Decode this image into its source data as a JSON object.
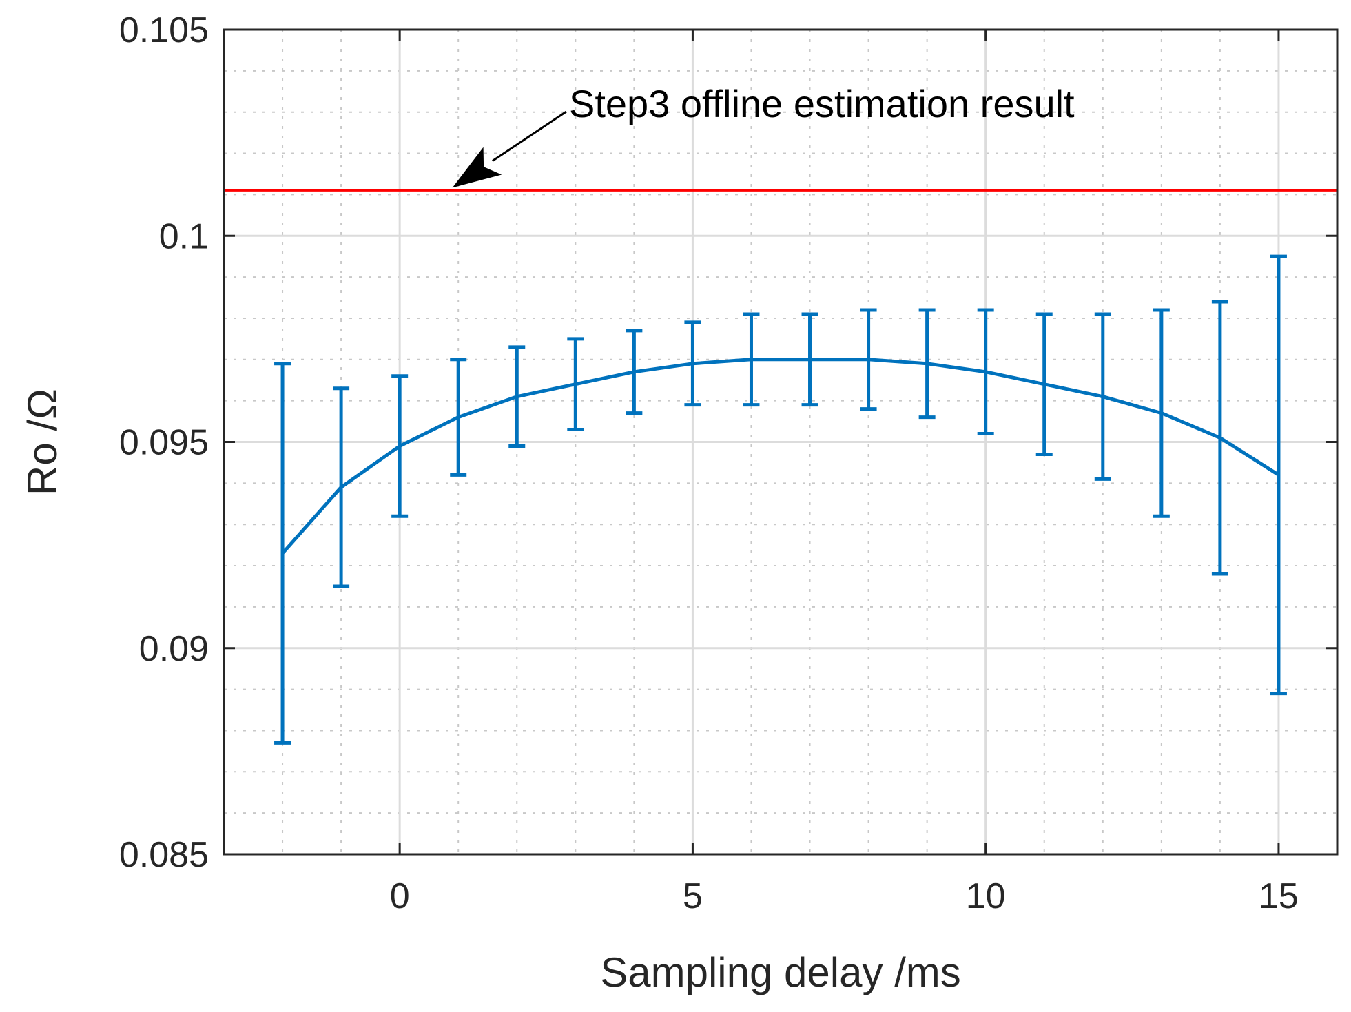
{
  "chart_data": {
    "type": "line",
    "title": "",
    "xlabel": "Sampling delay /ms",
    "ylabel": "Ro /Ω",
    "xlim": [
      -3,
      16
    ],
    "ylim": [
      0.085,
      0.105
    ],
    "grid": true,
    "minor_grid": true,
    "x_ticks": [
      0,
      5,
      10,
      15
    ],
    "x_tick_labels": [
      "0",
      "5",
      "10",
      "15"
    ],
    "y_ticks": [
      0.085,
      0.09,
      0.095,
      0.1,
      0.105
    ],
    "y_tick_labels": [
      "0.085",
      "0.09",
      "0.095",
      "0.1",
      "0.105"
    ],
    "series": [
      {
        "name": "Ro estimate",
        "color": "#0072BD",
        "x": [
          -2,
          -1,
          0,
          1,
          2,
          3,
          4,
          5,
          6,
          7,
          8,
          9,
          10,
          11,
          12,
          13,
          14,
          15
        ],
        "y": [
          0.0923,
          0.0939,
          0.0949,
          0.0956,
          0.0961,
          0.0964,
          0.0967,
          0.0969,
          0.097,
          0.097,
          0.097,
          0.0969,
          0.0967,
          0.0964,
          0.0961,
          0.0957,
          0.0951,
          0.0942
        ],
        "err_low": [
          0.0877,
          0.0915,
          0.0932,
          0.0942,
          0.0949,
          0.0953,
          0.0957,
          0.0959,
          0.0959,
          0.0959,
          0.0958,
          0.0956,
          0.0952,
          0.0947,
          0.0941,
          0.0932,
          0.0918,
          0.0889
        ],
        "err_high": [
          0.0969,
          0.0963,
          0.0966,
          0.097,
          0.0973,
          0.0975,
          0.0977,
          0.0979,
          0.0981,
          0.0981,
          0.0982,
          0.0982,
          0.0982,
          0.0981,
          0.0981,
          0.0982,
          0.0984,
          0.0995
        ]
      }
    ],
    "reference_line": {
      "y": 0.1011,
      "color": "#FF0000"
    },
    "annotation": {
      "text": "Step3 offline estimation result",
      "arrow_target_x": 0.9,
      "arrow_target_y": 0.1011
    }
  }
}
